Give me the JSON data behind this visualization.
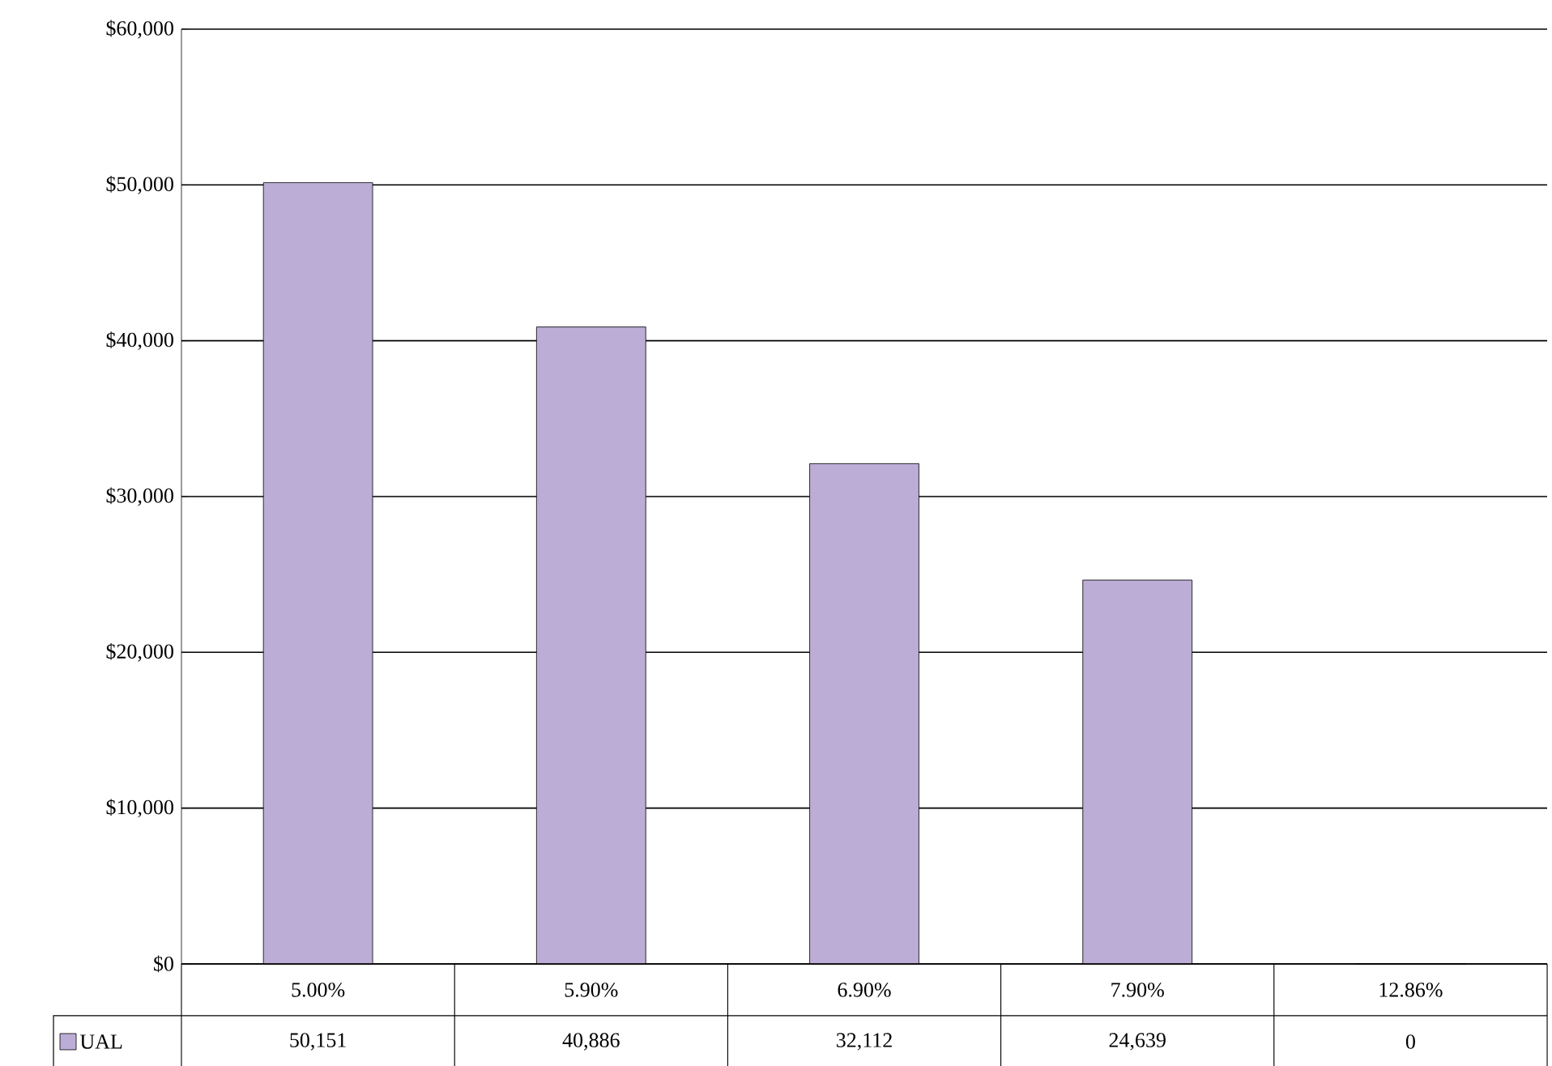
{
  "chart_data": {
    "type": "bar",
    "categories": [
      "5.00%",
      "5.90%",
      "6.90%",
      "7.90%",
      "12.86%"
    ],
    "series": [
      {
        "name": "UAL",
        "color": "#bbadd5",
        "values": [
          50151,
          40886,
          32112,
          24639,
          0
        ],
        "value_labels": [
          "50,151",
          "40,886",
          "32,112",
          "24,639",
          "0"
        ]
      }
    ],
    "ylim": [
      0,
      60000
    ],
    "yticks": [
      {
        "value": 0,
        "label": "$0"
      },
      {
        "value": 10000,
        "label": "$10,000"
      },
      {
        "value": 20000,
        "label": "$20,000"
      },
      {
        "value": 30000,
        "label": "$30,000"
      },
      {
        "value": 40000,
        "label": "$40,000"
      },
      {
        "value": 50000,
        "label": "$50,000"
      },
      {
        "value": 60000,
        "label": "$60,000"
      }
    ],
    "grid": "y",
    "legend": "bottom left"
  }
}
